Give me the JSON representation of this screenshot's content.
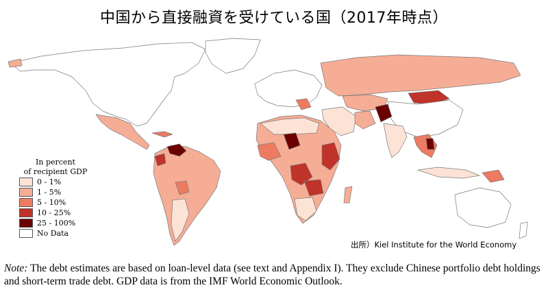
{
  "title": "中国から直接融資を受けている国（2017年時点）",
  "legend": {
    "title_line1": "In percent",
    "title_line2": "of recipient GDP",
    "items": [
      {
        "label": "0 - 1%",
        "color": "#fce3d6"
      },
      {
        "label": "1 - 5%",
        "color": "#f6ad95"
      },
      {
        "label": "5 - 10%",
        "color": "#ee7a62"
      },
      {
        "label": "10 - 25%",
        "color": "#c0332a"
      },
      {
        "label": "25 - 100%",
        "color": "#6b0000"
      },
      {
        "label": "No Data",
        "color": "#ffffff"
      }
    ]
  },
  "source": "出所）Kiel Institute for the World Economy",
  "note": {
    "label": "Note:",
    "text": " The debt estimates are based on loan-level data (see text and Appendix I). They exclude Chinese portfolio debt holdings and short-term trade debt. GDP data is from the IMF World Economic Outlook."
  }
}
